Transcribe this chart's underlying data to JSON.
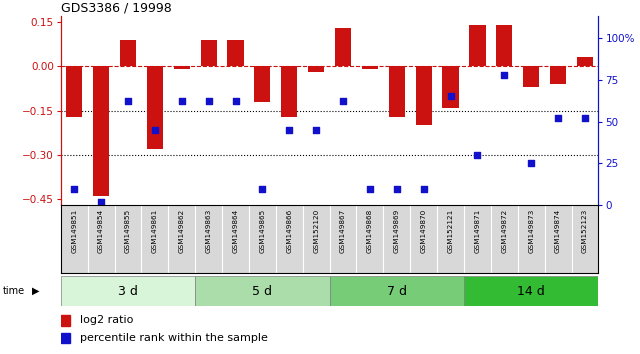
{
  "title": "GDS3386 / 19998",
  "samples": [
    "GSM149851",
    "GSM149854",
    "GSM149855",
    "GSM149861",
    "GSM149862",
    "GSM149863",
    "GSM149864",
    "GSM149865",
    "GSM149866",
    "GSM152120",
    "GSM149867",
    "GSM149868",
    "GSM149869",
    "GSM149870",
    "GSM152121",
    "GSM149871",
    "GSM149872",
    "GSM149873",
    "GSM149874",
    "GSM152123"
  ],
  "log2_ratio": [
    -0.17,
    -0.44,
    0.09,
    -0.28,
    -0.01,
    0.09,
    0.09,
    -0.12,
    -0.17,
    -0.02,
    0.13,
    -0.01,
    -0.17,
    -0.2,
    -0.14,
    0.14,
    0.14,
    -0.07,
    -0.06,
    0.03
  ],
  "percentile_rank": [
    10,
    2,
    62,
    45,
    62,
    62,
    62,
    10,
    45,
    45,
    62,
    10,
    10,
    10,
    65,
    30,
    78,
    25,
    52,
    52
  ],
  "groups": [
    {
      "label": "3 d",
      "start": 0,
      "end": 5,
      "color": "#d9f5d9"
    },
    {
      "label": "5 d",
      "start": 5,
      "end": 10,
      "color": "#aaddaa"
    },
    {
      "label": "7 d",
      "start": 10,
      "end": 15,
      "color": "#77cc77"
    },
    {
      "label": "14 d",
      "start": 15,
      "end": 20,
      "color": "#33bb33"
    }
  ],
  "bar_color": "#cc1111",
  "dot_color": "#1111cc",
  "ylim_left": [
    -0.47,
    0.17
  ],
  "ylim_right": [
    0,
    113
  ],
  "left_yticks": [
    0.15,
    0.0,
    -0.15,
    -0.3,
    -0.45
  ],
  "right_yticks": [
    0,
    25,
    50,
    75,
    100
  ],
  "right_yticklabels": [
    "0",
    "25",
    "50",
    "75",
    "100%"
  ],
  "background_color": "#ffffff",
  "label_bg_color": "#d8d8d8",
  "time_bar_black_line_color": "#111111"
}
